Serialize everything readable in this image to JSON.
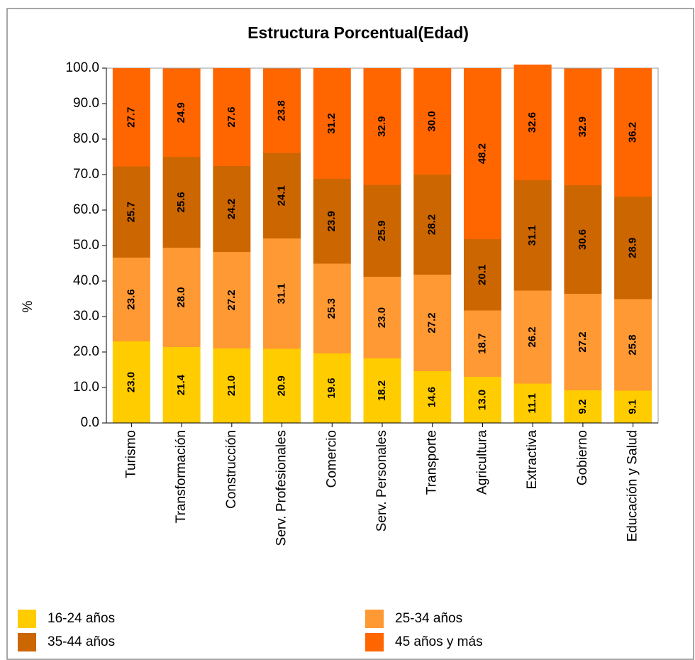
{
  "chart_data": {
    "type": "stacked-bar",
    "title": "Estructura Porcentual(Edad)",
    "y_label": "%",
    "categories": [
      "Turismo",
      "Transformación",
      "Construcción",
      "Serv. Profesionales",
      "Comercio",
      "Serv. Personales",
      "Transporte",
      "Agricultura",
      "Extractiva",
      "Gobierno",
      "Educación y Salud"
    ],
    "series": [
      {
        "name": "16-24 años",
        "color": "#ffcc00",
        "values": [
          23.0,
          21.4,
          21.0,
          20.9,
          19.6,
          18.2,
          14.6,
          13.0,
          11.1,
          9.2,
          9.1
        ],
        "value_labels": [
          "23.0",
          "21.4",
          "21.0",
          "20.9",
          "19.6",
          "18.2",
          "14.6",
          "13.0",
          "11.1",
          "9.2",
          "9.1"
        ]
      },
      {
        "name": "25-34 años",
        "color": "#ff9933",
        "values": [
          23.6,
          28.0,
          27.2,
          31.1,
          25.3,
          23.0,
          27.2,
          18.7,
          26.2,
          27.2,
          25.8
        ],
        "value_labels": [
          "23.6",
          "28.0",
          "27.2",
          "31.1",
          "25.3",
          "23.0",
          "27.2",
          "18.7",
          "26.2",
          "27.2",
          "25.8"
        ]
      },
      {
        "name": "35-44 años",
        "color": "#cc6600",
        "values": [
          25.7,
          25.6,
          24.2,
          24.1,
          23.9,
          25.9,
          28.2,
          20.1,
          31.1,
          30.6,
          28.9
        ],
        "value_labels": [
          "25.7",
          "25.6",
          "24.2",
          "24.1",
          "23.9",
          "25.9",
          "28.2",
          "20.1",
          "31.1",
          "30.6",
          "28.9"
        ]
      },
      {
        "name": "45 años y más",
        "color": "#ff6600",
        "values": [
          27.7,
          24.9,
          27.6,
          23.8,
          31.2,
          32.9,
          30.0,
          48.2,
          32.6,
          32.9,
          36.2
        ],
        "value_labels": [
          "27.7",
          "24.9",
          "27.6",
          "23.8",
          "31.2",
          "32.9",
          "30.0",
          "48.2",
          "32.6",
          "32.9",
          "36.2"
        ]
      }
    ],
    "ylim": [
      0,
      100
    ],
    "yticks": [
      {
        "value": 0,
        "label": "0.0"
      },
      {
        "value": 10,
        "label": "10.0"
      },
      {
        "value": 20,
        "label": "20.0"
      },
      {
        "value": 30,
        "label": "30.0"
      },
      {
        "value": 40,
        "label": "40.0"
      },
      {
        "value": 50,
        "label": "50.0"
      },
      {
        "value": 60,
        "label": "60.0"
      },
      {
        "value": 70,
        "label": "70.0"
      },
      {
        "value": 80,
        "label": "80.0"
      },
      {
        "value": 90,
        "label": "90.0"
      },
      {
        "value": 100,
        "label": "100.0"
      }
    ],
    "legend": "bottom"
  }
}
